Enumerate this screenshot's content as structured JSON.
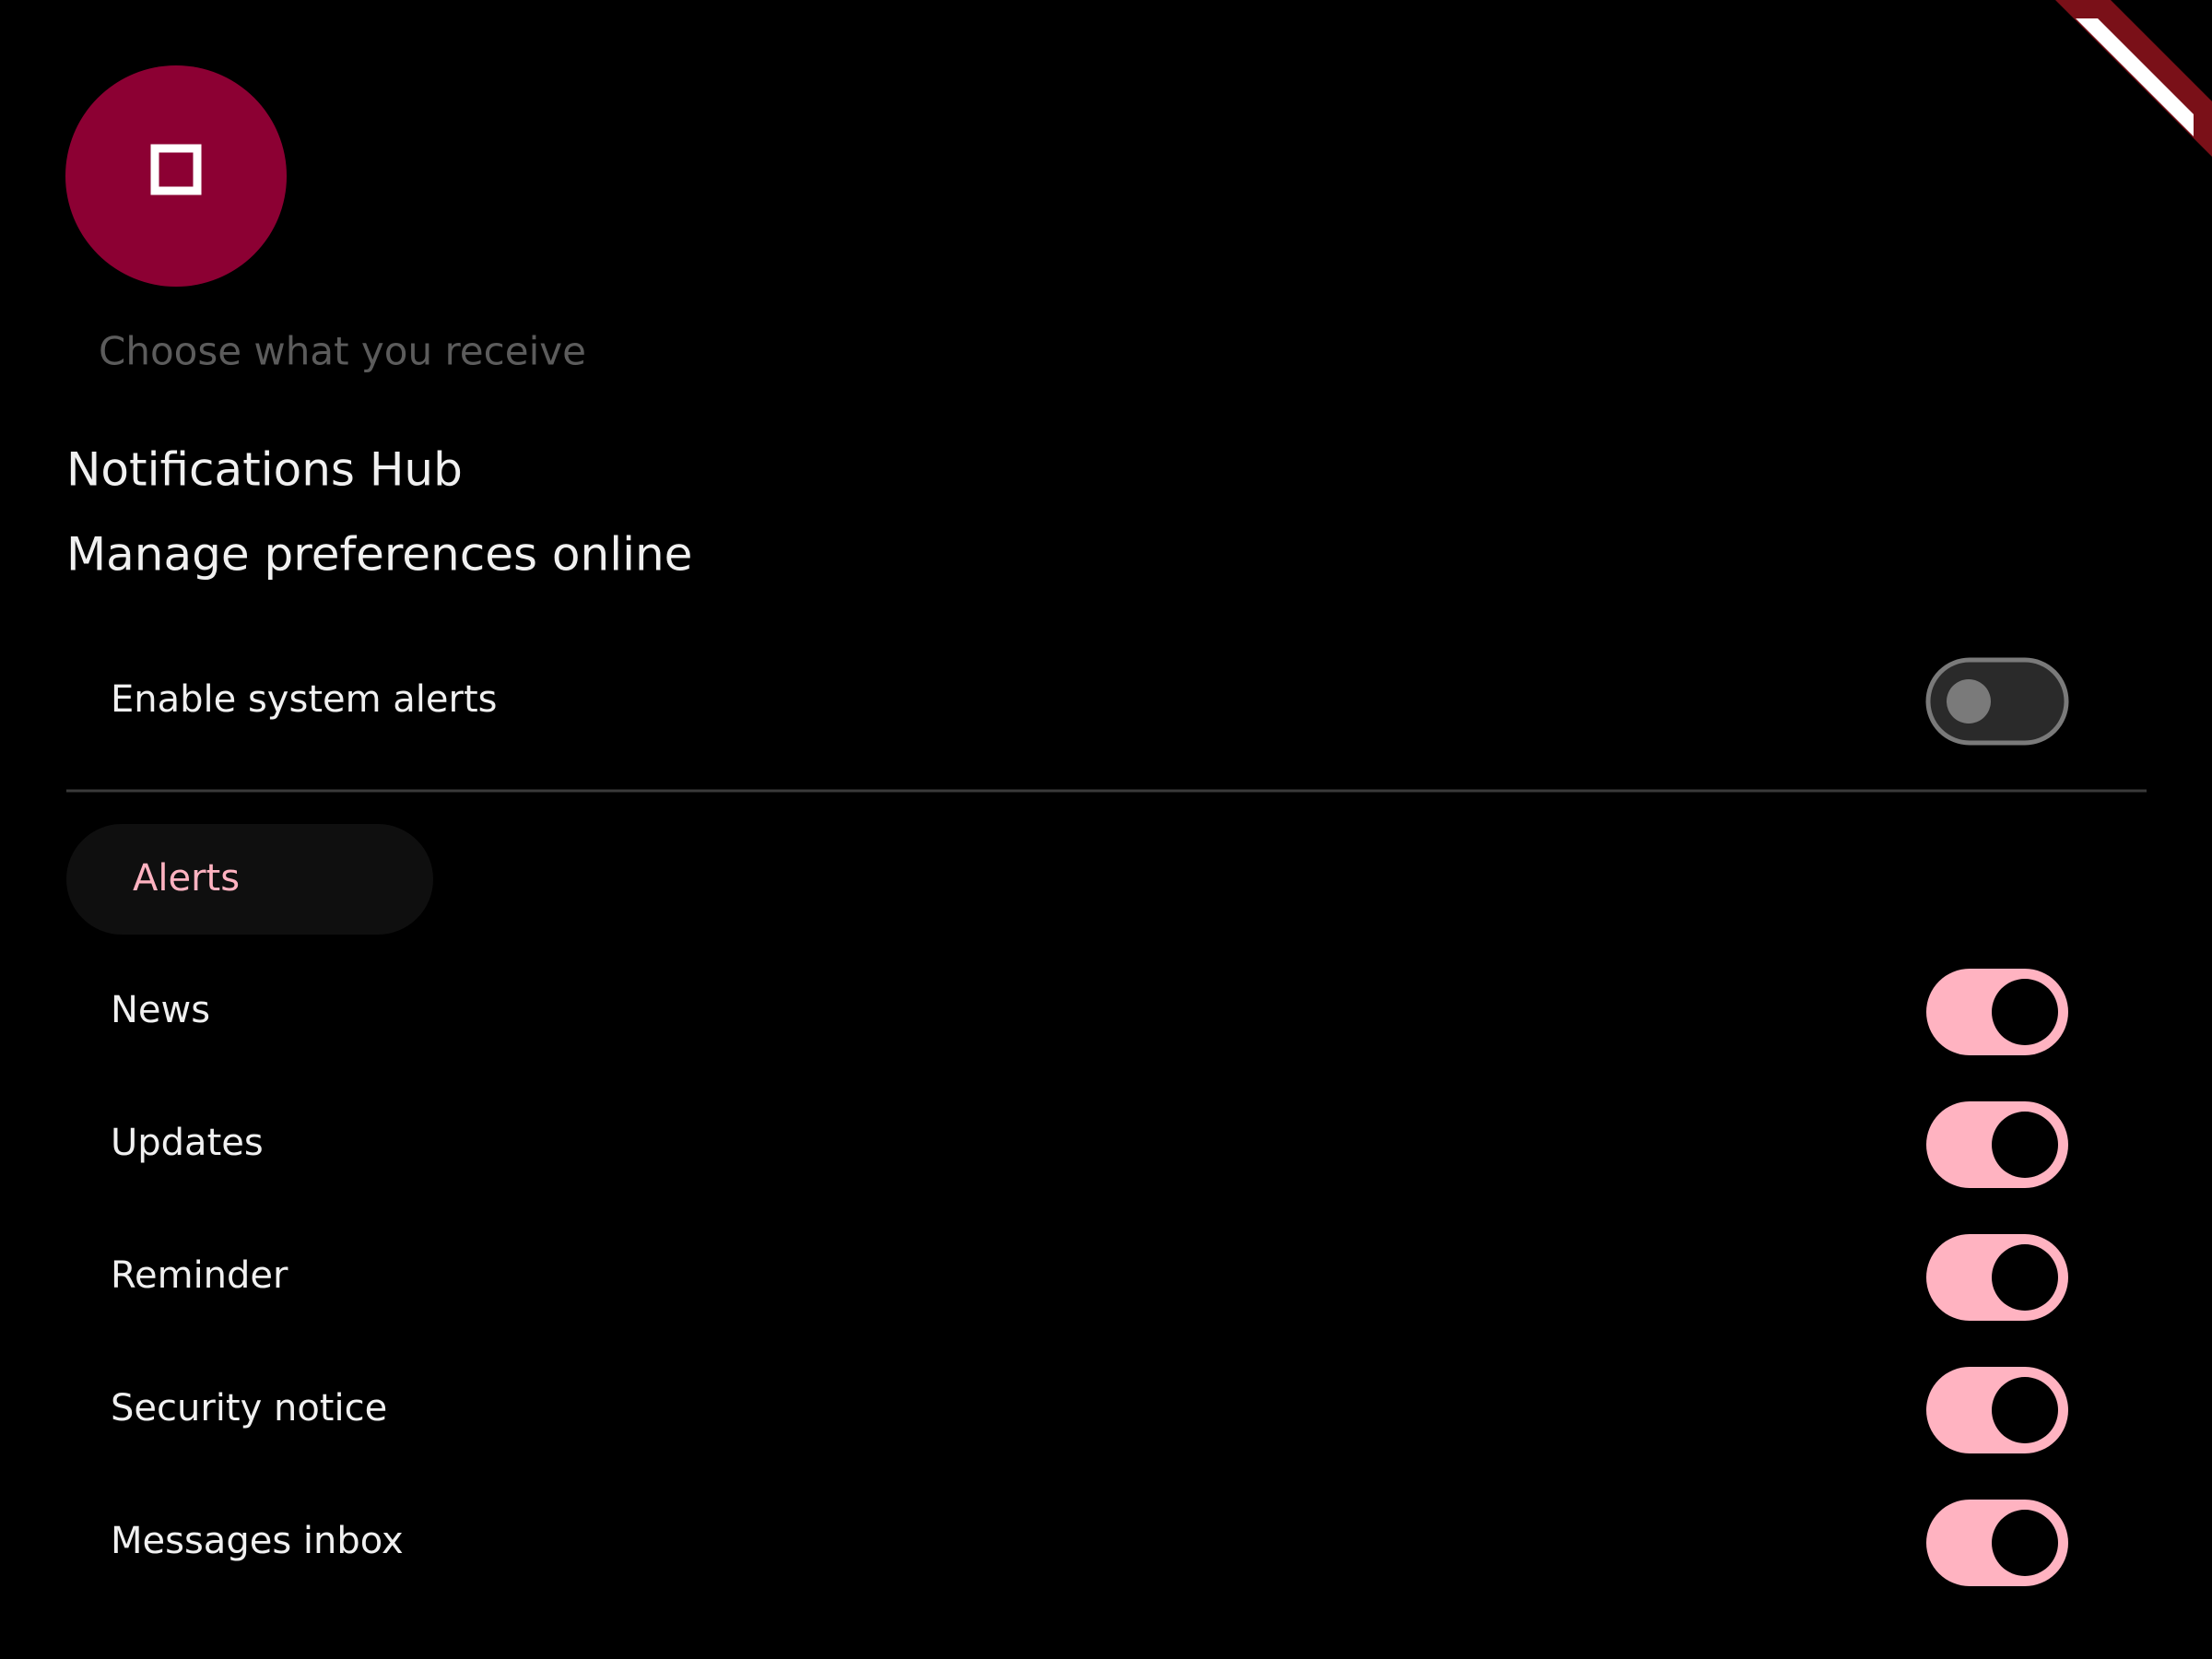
{
  "header": {
    "hint": "Choose what you receive"
  },
  "title_lines": [
    "Notifications Hub",
    "Manage preferences online"
  ],
  "master_toggle": {
    "label": "Enable system alerts",
    "on": false
  },
  "chip": {
    "label": "Alerts"
  },
  "toggles": [
    {
      "label": "News",
      "on": true
    },
    {
      "label": "Updates",
      "on": true
    },
    {
      "label": "Reminder",
      "on": true
    },
    {
      "label": "Security notice",
      "on": true
    },
    {
      "label": "Messages inbox",
      "on": true
    }
  ]
}
